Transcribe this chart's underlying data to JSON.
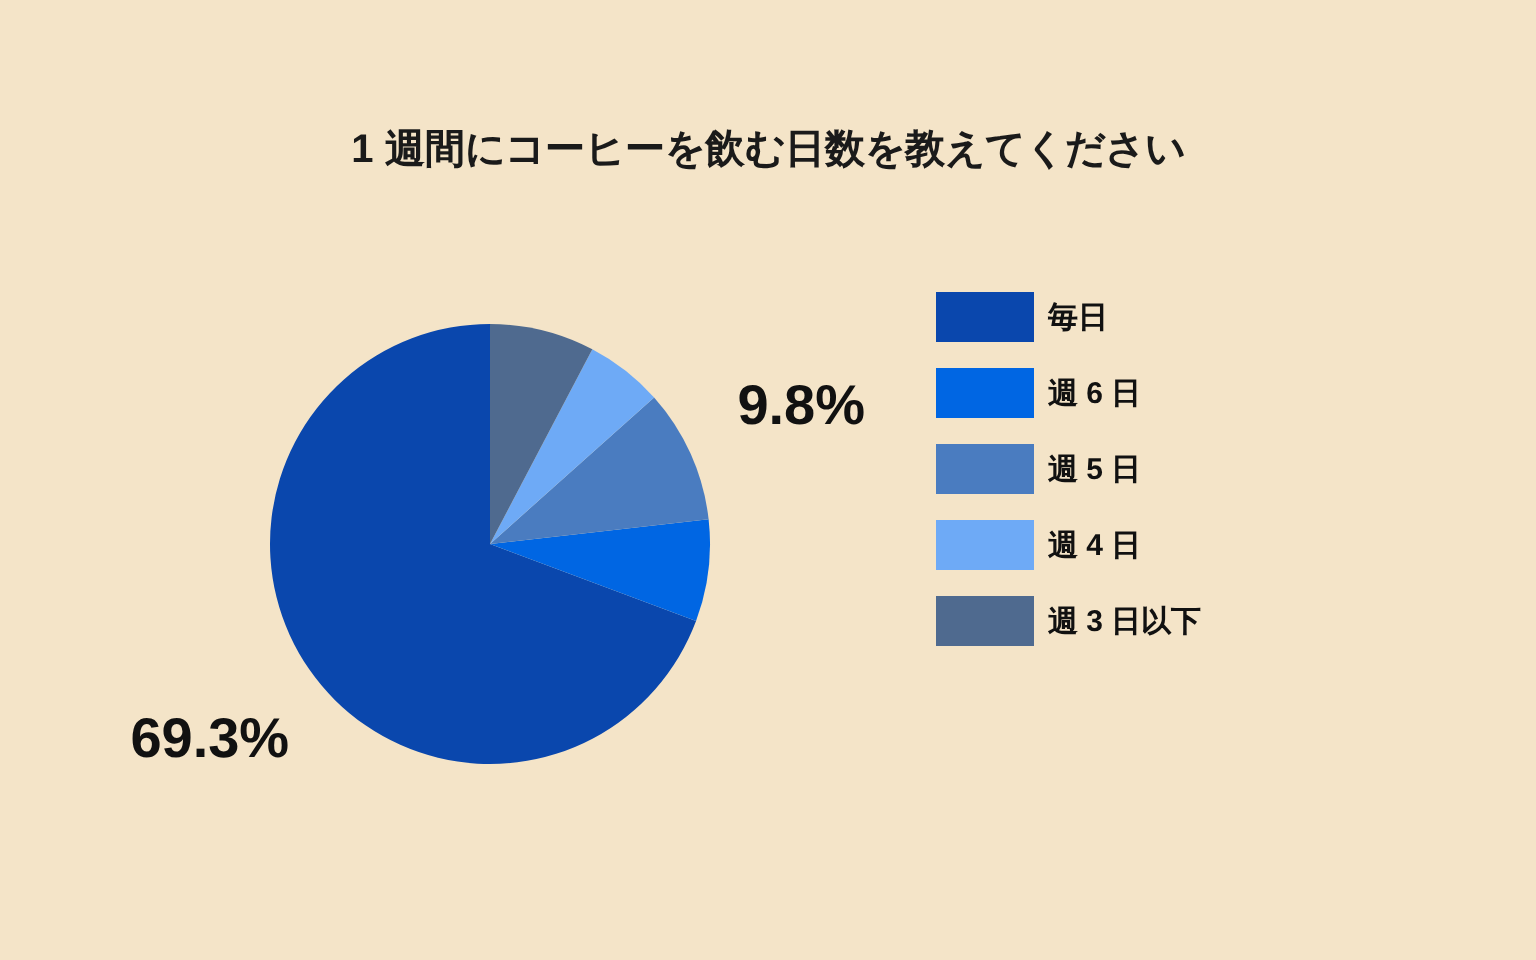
{
  "chart_data": {
    "type": "pie",
    "title": "1 週間にコーヒーを飲む日数を教えてください",
    "categories": [
      "毎日",
      "週 6 日",
      "週 5 日",
      "週 4 日",
      "週 3 日以下"
    ],
    "values": [
      69.3,
      7.5,
      9.8,
      5.7,
      7.7
    ],
    "colors": [
      "#0a47ad",
      "#0066e3",
      "#4a7cc0",
      "#6eaaf6",
      "#4f6a8f"
    ],
    "value_labels": [
      "69.3%",
      null,
      "9.8%",
      null,
      null
    ],
    "legend": "right"
  }
}
